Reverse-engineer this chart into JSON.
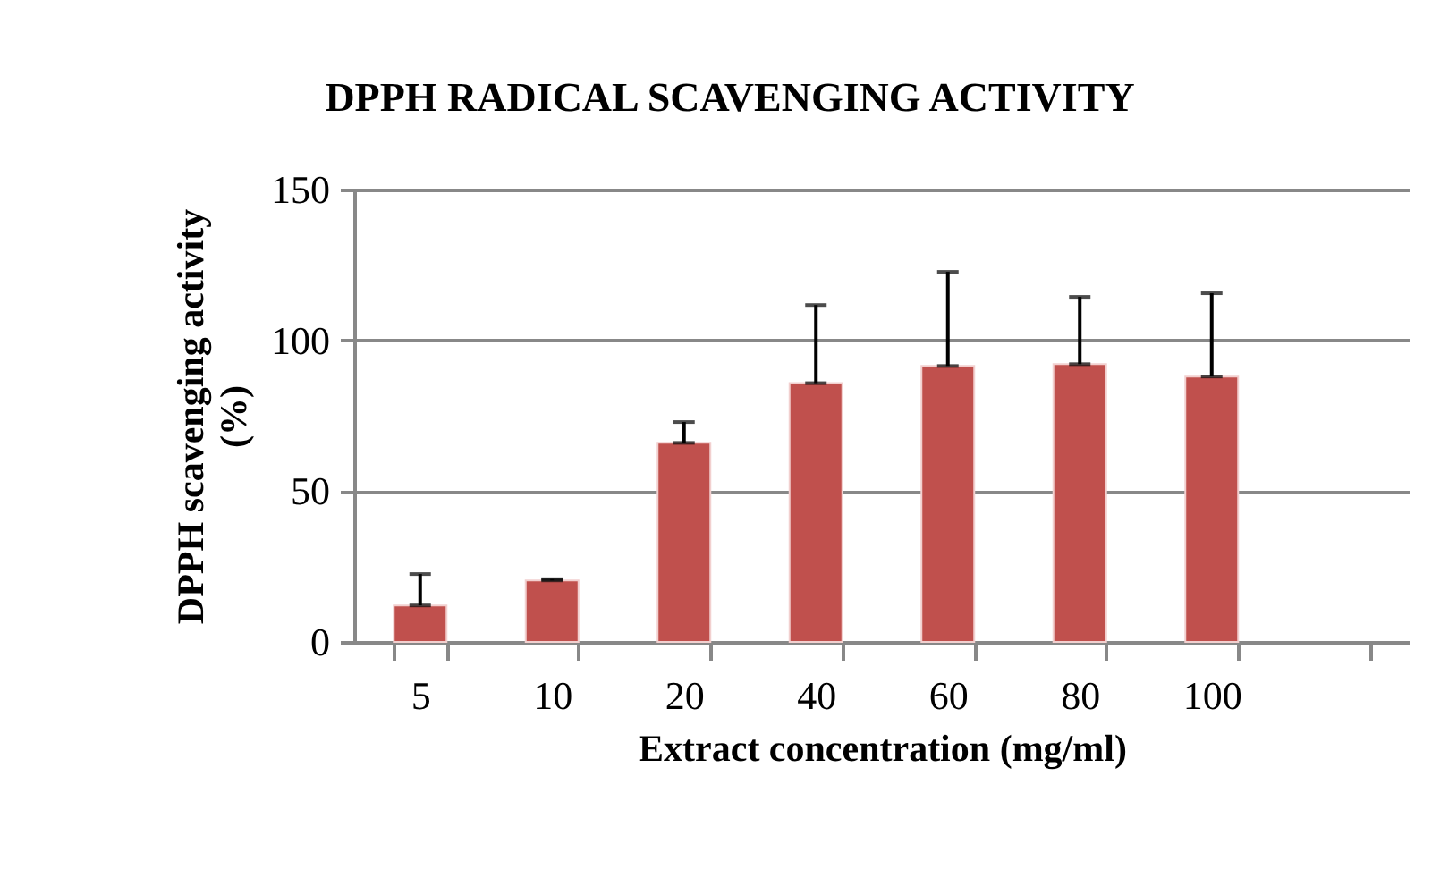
{
  "chart_data": {
    "type": "bar",
    "title": "DPPH RADICAL SCAVENGING ACTIVITY",
    "xlabel": "Extract concentration (mg/ml)",
    "ylabel": "DPPH scavenging activity\n(%)",
    "categories": [
      "5",
      "10",
      "20",
      "40",
      "60",
      "80",
      "100",
      null
    ],
    "values": [
      12.1,
      20.4,
      66,
      85.8,
      91.5,
      92.1,
      88,
      null
    ],
    "errors": [
      [
        12.1,
        22.5
      ],
      [
        20.4,
        20.8
      ],
      [
        66,
        72.9
      ],
      [
        85.8,
        111.7
      ],
      [
        91.5,
        122.7
      ],
      [
        92.1,
        114.4
      ],
      [
        88,
        115.6
      ],
      null
    ],
    "color": "#c0504d",
    "ylim": [
      0,
      150
    ],
    "yticks": [
      0,
      50,
      100,
      150
    ],
    "grid": "y"
  }
}
